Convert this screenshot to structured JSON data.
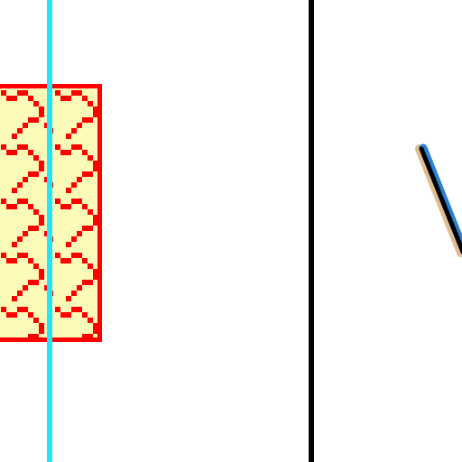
{
  "canvas": {
    "background": "#ffffff"
  },
  "pattern_swatch": {
    "fill_color": "#fdfbb8",
    "border_color": "#ff0000",
    "pattern_color": "#ff0000",
    "pattern": "scallop-tile"
  },
  "cursor_line": {
    "color": "#22e6f4"
  },
  "divider": {
    "color": "#000000"
  },
  "pen_stroke": {
    "icon": "pen-stroke-icon",
    "colors": [
      "#000000",
      "#2a7fd6",
      "#c98a3a"
    ]
  }
}
